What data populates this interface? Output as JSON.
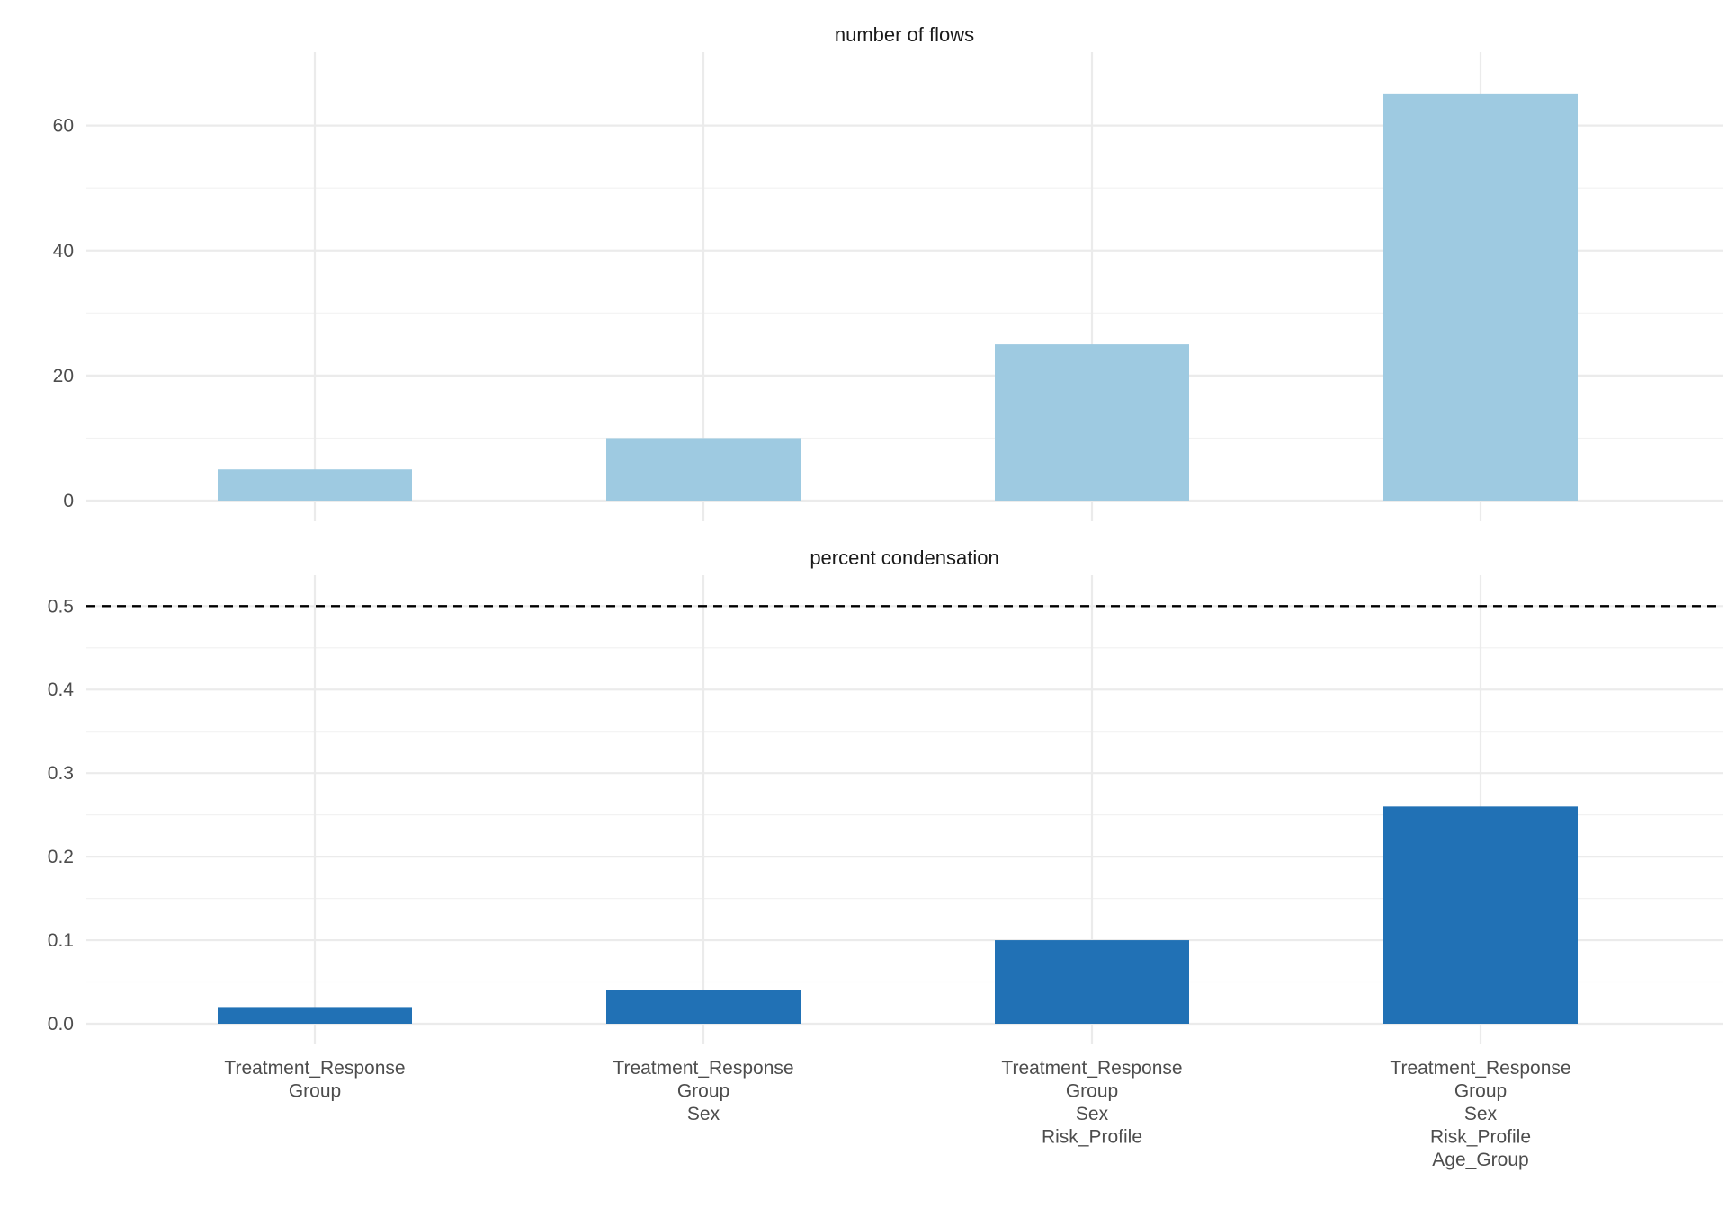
{
  "chart_data": {
    "type": "bar",
    "categories": [
      [
        "Treatment_Response",
        "Group"
      ],
      [
        "Treatment_Response",
        "Group",
        "Sex"
      ],
      [
        "Treatment_Response",
        "Group",
        "Sex",
        "Risk_Profile"
      ],
      [
        "Treatment_Response",
        "Group",
        "Sex",
        "Risk_Profile",
        "Age_Group"
      ]
    ],
    "panels": [
      {
        "title": "number of flows",
        "values": [
          5,
          10,
          25,
          65
        ],
        "ylim": [
          0,
          68
        ],
        "yticks": [
          0,
          20,
          40,
          60
        ],
        "ytick_labels": [
          "0",
          "20",
          "40",
          "60"
        ],
        "color": "#9ecae1",
        "reference_line": null
      },
      {
        "title": "percent condensation",
        "values": [
          0.02,
          0.04,
          0.1,
          0.26
        ],
        "ylim": [
          0,
          0.51
        ],
        "yticks": [
          0,
          0.1,
          0.2,
          0.3,
          0.4,
          0.5
        ],
        "ytick_labels": [
          "0.0",
          "0.1",
          "0.2",
          "0.3",
          "0.4",
          "0.5"
        ],
        "color": "#2171b5",
        "reference_line": {
          "y": 0.5,
          "style": "dashed",
          "color": "#000000"
        }
      }
    ],
    "xlabel": "",
    "ylabel": "",
    "grid": true,
    "legend": "none"
  }
}
